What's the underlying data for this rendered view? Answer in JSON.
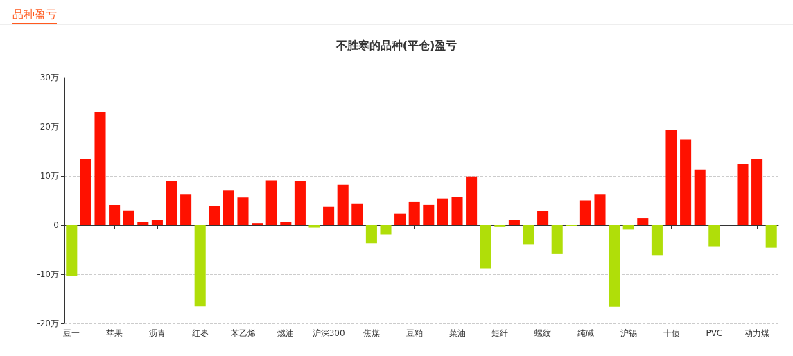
{
  "chart_data": {
    "type": "bar",
    "title": "不胜寒的品种(平仓)盈亏",
    "annotations": [
      "品种盈亏"
    ],
    "categories": [
      "豆一",
      null,
      null,
      "苹果",
      null,
      null,
      "沥青",
      null,
      null,
      "红枣",
      null,
      null,
      "苯乙烯",
      null,
      null,
      "燃油",
      null,
      null,
      "沪深300",
      null,
      null,
      "焦煤",
      null,
      null,
      "豆粕",
      null,
      null,
      "菜油",
      null,
      null,
      "短纤",
      null,
      null,
      "螺纹",
      null,
      null,
      "纯碱",
      null,
      null,
      "沪锡",
      null,
      null,
      "十债",
      null,
      null,
      "PVC",
      null,
      null,
      "动力煤",
      null
    ],
    "values": [
      -10.4,
      13.5,
      23.1,
      4.1,
      3.0,
      0.6,
      1.1,
      8.9,
      6.3,
      -16.5,
      3.8,
      7.0,
      5.6,
      0.4,
      9.1,
      0.7,
      9.0,
      -0.5,
      3.7,
      8.2,
      4.4,
      -3.7,
      -1.9,
      2.3,
      4.8,
      4.1,
      5.4,
      5.7,
      9.9,
      -8.8,
      -0.4,
      1.0,
      -4.0,
      2.9,
      -5.9,
      -0.2,
      5.0,
      6.3,
      -16.6,
      -0.9,
      1.4,
      -6.1,
      19.3,
      17.4,
      11.3,
      -4.3,
      0,
      12.4,
      13.5,
      -4.6
    ],
    "colors": [
      "#b0de09",
      "#ff1100",
      "#ff1100",
      "#ff1100",
      "#ff1100",
      "#ff1100",
      "#ff1100",
      "#ff1100",
      "#ff1100",
      "#b0de09",
      "#ff1100",
      "#ff1100",
      "#ff1100",
      "#ff1100",
      "#ff1100",
      "#ff1100",
      "#ff1100",
      "#b0de09",
      "#ff1100",
      "#ff1100",
      "#ff1100",
      "#b0de09",
      "#b0de09",
      "#ff1100",
      "#ff1100",
      "#ff1100",
      "#ff1100",
      "#ff1100",
      "#ff1100",
      "#b0de09",
      "#b0de09",
      "#ff1100",
      "#b0de09",
      "#ff1100",
      "#b0de09",
      "#b0de09",
      "#ff1100",
      "#ff1100",
      "#b0de09",
      "#b0de09",
      "#ff1100",
      "#b0de09",
      "#ff1100",
      "#ff1100",
      "#ff1100",
      "#b0de09",
      "#ff1100",
      "#ff1100",
      "#ff1100",
      "#b0de09"
    ],
    "ylim": [
      -20,
      30
    ],
    "yticks": [
      {
        "value": -20,
        "label": "-20万"
      },
      {
        "value": -10,
        "label": "-10万"
      },
      0,
      {
        "value": 10,
        "label": "10万"
      },
      {
        "value": 20,
        "label": "20万"
      },
      {
        "value": 30,
        "label": "30万"
      }
    ],
    "grid": "y"
  }
}
